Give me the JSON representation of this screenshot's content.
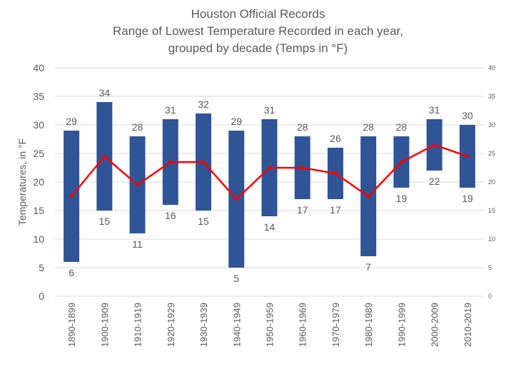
{
  "chart_data": {
    "type": "bar",
    "title_lines": [
      "Houston Official Records",
      "Range of Lowest Temperature Recorded in each year,",
      "grouped by decade (Temps in °F)"
    ],
    "ylabel": "Temperatures, in °F",
    "ylim": [
      0,
      40
    ],
    "yticks": [
      0,
      5,
      10,
      15,
      20,
      25,
      30,
      35,
      40
    ],
    "grid": true,
    "categories": [
      "1890-1899",
      "1900-1909",
      "1910-1919",
      "1920-1929",
      "1930-1939",
      "1940-1949",
      "1950-1959",
      "1960-1969",
      "1970-1979",
      "1980-1989",
      "1990-1999",
      "2000-2009",
      "2010-2019"
    ],
    "high": [
      29,
      34,
      28,
      31,
      32,
      29,
      31,
      28,
      26,
      28,
      28,
      31,
      30
    ],
    "low": [
      6,
      15,
      11,
      16,
      15,
      5,
      14,
      17,
      17,
      7,
      19,
      22,
      19
    ],
    "midline": [
      17.5,
      24.5,
      19.5,
      23.5,
      23.5,
      17,
      22.5,
      22.5,
      21.5,
      17.5,
      23.5,
      26.5,
      24.5
    ],
    "colors": {
      "bar": "#2F5597",
      "line": "#FF0000",
      "grid": "#D9D9D9",
      "text": "#595959"
    }
  }
}
